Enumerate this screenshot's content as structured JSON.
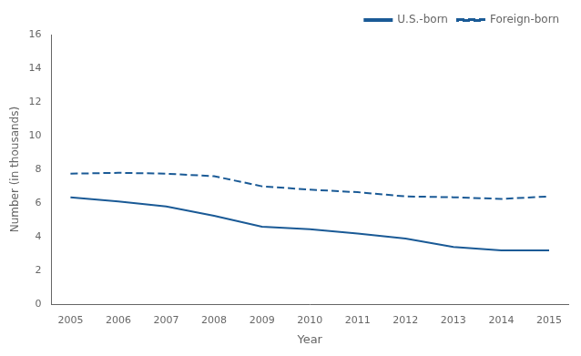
{
  "chart_data": {
    "type": "line",
    "x": [
      2005,
      2006,
      2007,
      2008,
      2009,
      2010,
      2011,
      2012,
      2013,
      2014,
      2015
    ],
    "series": [
      {
        "name": "U.S.-born",
        "color": "#1a5a96",
        "line_style": "solid",
        "values": [
          6.35,
          6.1,
          5.8,
          5.25,
          4.6,
          4.45,
          4.2,
          3.9,
          3.4,
          3.2,
          3.2
        ]
      },
      {
        "name": "Foreign-born",
        "color": "#1a5a96",
        "line_style": "dashed",
        "values": [
          7.75,
          7.8,
          7.75,
          7.6,
          7.0,
          6.8,
          6.65,
          6.4,
          6.35,
          6.25,
          6.4
        ]
      }
    ],
    "xlabel": "Year",
    "ylabel": "Number (in thousands)",
    "xlim": [
      2004.6,
      2015.4
    ],
    "xticks": [
      2005,
      2006,
      2007,
      2008,
      2009,
      2010,
      2011,
      2012,
      2013,
      2014,
      2015
    ],
    "ylim": [
      0,
      16
    ],
    "yticks": [
      0,
      2,
      4,
      6,
      8,
      10,
      12,
      14,
      16
    ],
    "legend": "upper right",
    "grid": false
  }
}
